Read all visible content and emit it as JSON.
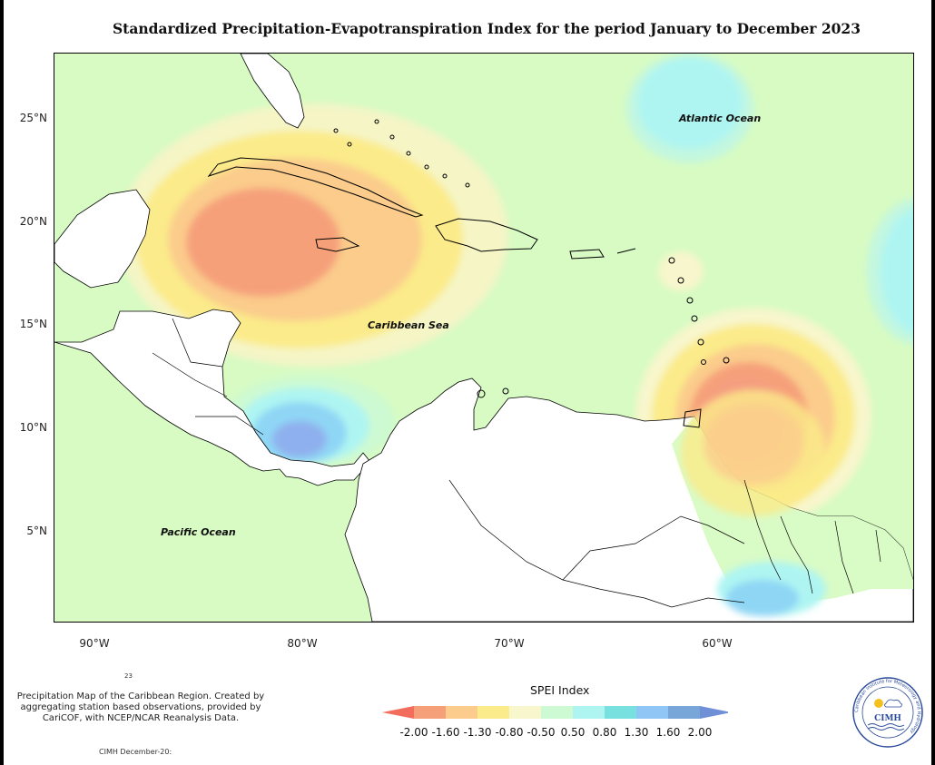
{
  "title": "Standardized Precipitation-Evapotranspiration Index for the period January to December 2023",
  "map_labels": {
    "atlantic": "Atlantic Ocean",
    "caribbean": "Caribbean Sea",
    "pacific": "Pacific Ocean"
  },
  "lat_labels": [
    "25°N",
    "20°N",
    "15°N",
    "10°N",
    "5°N"
  ],
  "lon_labels": [
    "90°W",
    "80°W",
    "70°W",
    "60°W"
  ],
  "description": "Precipitation Map of the Caribbean Region. Created by aggregating station based observations, provided by CariCOF, with NCEP/NCAR Reanalysis Data.",
  "small_text": "23",
  "credit": "CIMH December-20:",
  "legend": {
    "title": "SPEI Index",
    "ticks": [
      "-2.00",
      "-1.60",
      "-1.30",
      "-0.80",
      "-0.50",
      "0.50",
      "0.80",
      "1.30",
      "1.60",
      "2.00"
    ],
    "colors": [
      "#f26d5b",
      "#f6a07a",
      "#fbcc8c",
      "#fbeb8a",
      "#f8f6cc",
      "#cdfad2",
      "#aef5f2",
      "#78e0de",
      "#8fc6f5",
      "#78a6d8",
      "#6f8fd6"
    ]
  },
  "logo": {
    "abbrev": "CIMH",
    "ring_text": "Caribbean Institute for Meteorology and Hydrology"
  }
}
